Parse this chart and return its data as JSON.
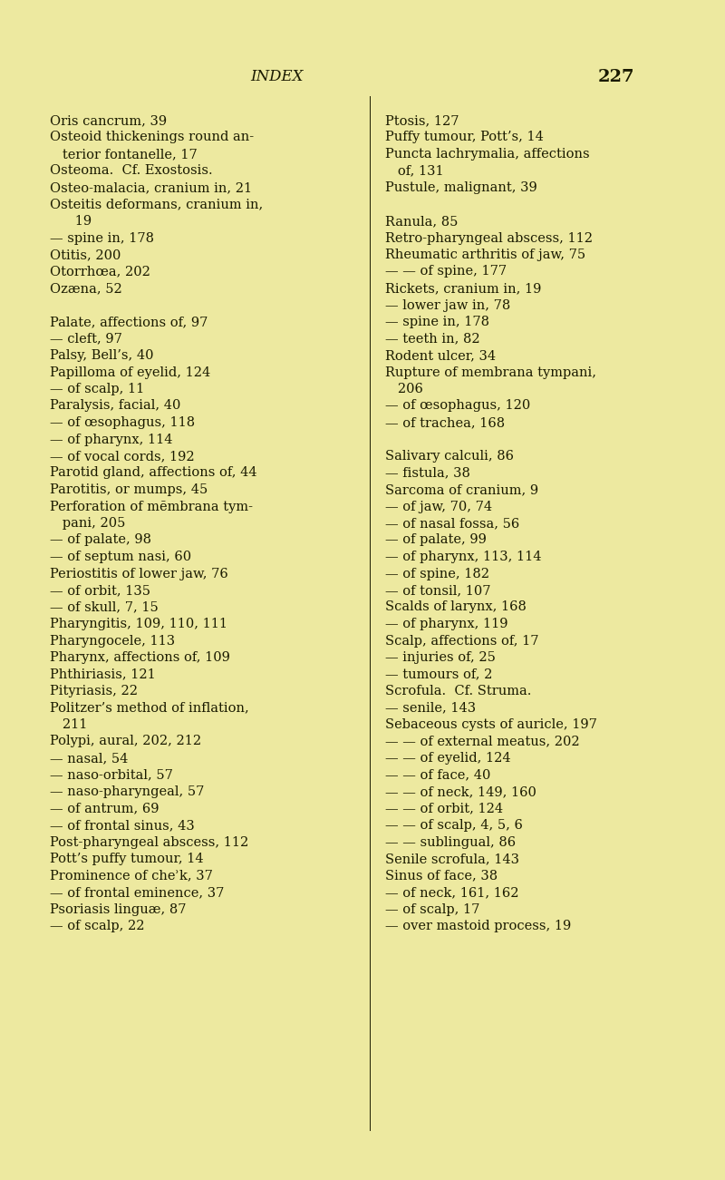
{
  "background_color": "#ede9a0",
  "text_color": "#1a1a00",
  "font_size": 10.5,
  "title_font_size": 12,
  "left_column": [
    "Oris cancrum, 39",
    "Osteoid thickenings round an-",
    "   terior fontanelle, 17",
    "Osteoma.  Cf. Exostosis.",
    "Osteo-malacia, cranium in, 21",
    "Osteitis deformans, cranium in,",
    "      19",
    "— spine in, 178",
    "Otitis, 200",
    "Otorrhœa, 202",
    "Ozæna, 52",
    "",
    "Palate, affections of, 97",
    "— cleft, 97",
    "Palsy, Bell’s, 40",
    "Papilloma of eyelid, 124",
    "— of scalp, 11",
    "Paralysis, facial, 40",
    "— of œsophagus, 118",
    "— of pharynx, 114",
    "— of vocal cords, 192",
    "Parotid gland, affections of, 44",
    "Parotitis, or mumps, 45",
    "Perforation of mēmbrana tym-",
    "   pani, 205",
    "— of palate, 98",
    "— of septum nasi, 60",
    "Periostitis of lower jaw, 76",
    "— of orbit, 135",
    "— of skull, 7, 15",
    "Pharyngitis, 109, 110, 111",
    "Pharyngocele, 113",
    "Pharynx, affections of, 109",
    "Phthiriasis, 121",
    "Pityriasis, 22",
    "Politzer’s method of inflation,",
    "   211",
    "Polypi, aural, 202, 212",
    "— nasal, 54",
    "— naso-orbital, 57",
    "— naso-pharyngeal, 57",
    "— of antrum, 69",
    "— of frontal sinus, 43",
    "Post-pharyngeal abscess, 112",
    "Pott’s puffy tumour, 14",
    "Prominence of cheʾk, 37",
    "— of frontal eminence, 37",
    "Psoriasis linguæ, 87",
    "— of scalp, 22"
  ],
  "right_column": [
    "Ptosis, 127",
    "Puffy tumour, Pott’s, 14",
    "Puncta lachrymalia, affections",
    "   of, 131",
    "Pustule, malignant, 39",
    "",
    "Ranula, 85",
    "Retro-pharyngeal abscess, 112",
    "Rheumatic arthritis of jaw, 75",
    "— — of spine, 177",
    "Rickets, cranium in, 19",
    "— lower jaw in, 78",
    "— spine in, 178",
    "— teeth in, 82",
    "Rodent ulcer, 34",
    "Rupture of membrana tympani,",
    "   206",
    "— of œsophagus, 120",
    "— of trachea, 168",
    "",
    "Salivary calculi, 86",
    "— fistula, 38",
    "Sarcoma of cranium, 9",
    "— of jaw, 70, 74",
    "— of nasal fossa, 56",
    "— of palate, 99",
    "— of pharynx, 113, 114",
    "— of spine, 182",
    "— of tonsil, 107",
    "Scalds of larynx, 168",
    "— of pharynx, 119",
    "Scalp, affections of, 17",
    "— injuries of, 25",
    "— tumours of, 2",
    "Scrofula.  Cf. Struma.",
    "— senile, 143",
    "Sebaceous cysts of auricle, 197",
    "— — of external meatus, 202",
    "— — of eyelid, 124",
    "— — of face, 40",
    "— — of neck, 149, 160",
    "— — of orbit, 124",
    "— — of scalp, 4, 5, 6",
    "— — sublingual, 86",
    "Senile scrofula, 143",
    "Sinus of face, 38",
    "— of neck, 161, 162",
    "— of scalp, 17",
    "— over mastoid process, 19"
  ]
}
